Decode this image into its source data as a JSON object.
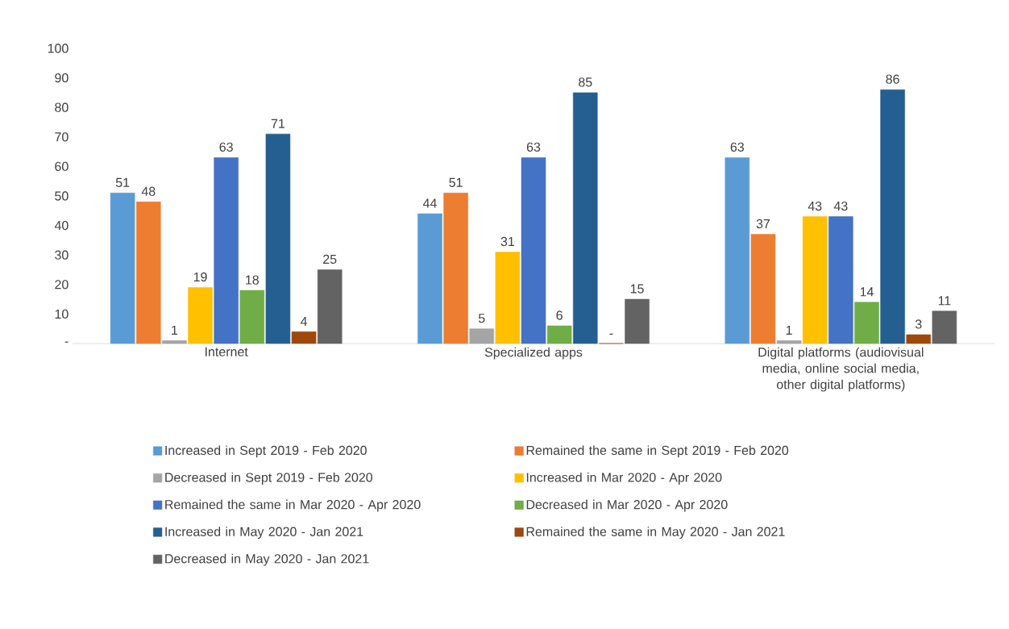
{
  "chart_data": {
    "type": "bar",
    "categories": [
      "Internet",
      "Specialized apps",
      "Digital platforms (audiovisual media, online social media, other digital platforms)"
    ],
    "series": [
      {
        "name": "Increased in Sept 2019 - Feb 2020",
        "color": "#5b9bd5",
        "values": [
          51,
          44,
          63
        ],
        "value_labels": [
          "51",
          "44",
          "63"
        ]
      },
      {
        "name": "Remained the same in Sept 2019 - Feb 2020",
        "color": "#ed7d31",
        "values": [
          48,
          51,
          37
        ],
        "value_labels": [
          "48",
          "51",
          "37"
        ]
      },
      {
        "name": "Decreased in Sept 2019 - Feb 2020",
        "color": "#a5a5a5",
        "values": [
          1,
          5,
          1
        ],
        "value_labels": [
          "1",
          "5",
          "1"
        ]
      },
      {
        "name": "Increased in Mar 2020 - Apr 2020",
        "color": "#ffc000",
        "values": [
          19,
          31,
          43
        ],
        "value_labels": [
          "19",
          "31",
          "43"
        ]
      },
      {
        "name": "Remained the same in Mar 2020 - Apr 2020",
        "color": "#4472c4",
        "values": [
          63,
          63,
          43
        ],
        "value_labels": [
          "63",
          "63",
          "43"
        ]
      },
      {
        "name": "Decreased in Mar 2020 - Apr 2020",
        "color": "#70ad47",
        "values": [
          18,
          6,
          14
        ],
        "value_labels": [
          "18",
          "6",
          "14"
        ]
      },
      {
        "name": "Increased in May 2020 - Jan 2021",
        "color": "#255e91",
        "values": [
          71,
          85,
          86
        ],
        "value_labels": [
          "71",
          "85",
          "86"
        ]
      },
      {
        "name": "Remained the same in May 2020 - Jan 2021",
        "color": "#9e480e",
        "values": [
          4,
          0,
          3
        ],
        "value_labels": [
          "4",
          "-",
          "3"
        ]
      },
      {
        "name": "Decreased in May 2020 - Jan 2021",
        "color": "#636363",
        "values": [
          25,
          15,
          11
        ],
        "value_labels": [
          "25",
          "15",
          "11"
        ]
      }
    ],
    "ylim": [
      0,
      100
    ],
    "yticks": [
      {
        "value": 0,
        "label": "-"
      },
      10,
      20,
      30,
      40,
      50,
      60,
      70,
      80,
      90,
      100
    ],
    "legend": "bottom"
  }
}
